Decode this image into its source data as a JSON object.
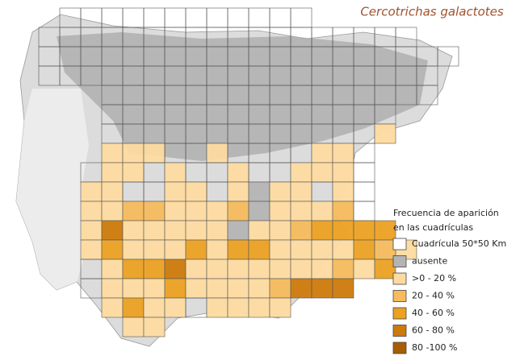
{
  "title": "Cercotrichas galactotes",
  "legend": {
    "title": [
      "Frecuencia de aparición",
      "en las cuadrículas"
    ],
    "items": [
      {
        "label": "Cuadrícula 50*50 Km",
        "color": "#ffffff"
      },
      {
        "label": "ausente",
        "color": "#b4b4b4"
      },
      {
        "label": ">0 - 20 %",
        "color": "#fddba0"
      },
      {
        "label": "20 - 40 %",
        "color": "#f5bb5c"
      },
      {
        "label": "40 - 60 %",
        "color": "#eba122"
      },
      {
        "label": "60 - 80 %",
        "color": "#cc7a0c"
      },
      {
        "label": "80 -100 %",
        "color": "#a65e02"
      }
    ]
  }
}
